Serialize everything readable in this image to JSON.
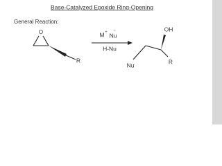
{
  "header": {
    "title": "Base-Catalyzed Epoxide Ring-Opening",
    "subtitle": "General Reaction:"
  },
  "reactant": {
    "ring_atom": "O",
    "substituent": "R"
  },
  "reagents": {
    "cation": "M",
    "cation_charge": "+",
    "anion": "Nu",
    "anion_charge": "−",
    "second": "H-Nu"
  },
  "product": {
    "hydroxyl": "OH",
    "nucleophile": "Nu",
    "substituent": "R"
  }
}
